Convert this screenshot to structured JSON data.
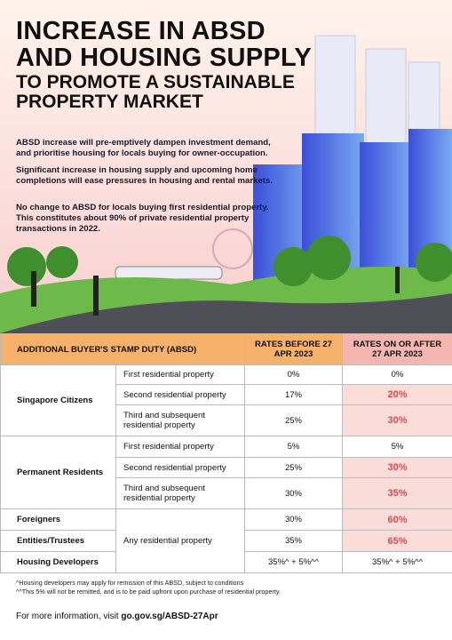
{
  "header": {
    "title_lines": [
      "INCREASE IN ABSD",
      "AND HOUSING SUPPLY"
    ],
    "subtitle_lines": [
      "TO PROMOTE A SUSTAINABLE",
      "PROPERTY MARKET"
    ]
  },
  "paragraphs": [
    "ABSD increase will pre-emptively dampen investment demand, and prioritise housing for locals buying for owner-occupation.",
    "Significant increase in housing supply and upcoming home completions will ease pressures in housing and rental markets.",
    "No change to ABSD for locals buying first residential property. This constitutes about 90% of private residential property transactions in 2022."
  ],
  "table": {
    "header": [
      "ADDITIONAL BUYER'S STAMP DUTY (ABSD)",
      "RATES BEFORE 27 APR 2023",
      "RATES ON OR AFTER 27 APR 2023"
    ],
    "groups": [
      {
        "label": "Singapore Citizens",
        "rows": [
          {
            "type": "First residential property",
            "before": "0%",
            "after": "0%"
          },
          {
            "type": "Second residential property",
            "before": "17%",
            "after": "20%"
          },
          {
            "type": "Third and subsequent residential property",
            "before": "25%",
            "after": "30%"
          }
        ]
      },
      {
        "label": "Permanent Residents",
        "rows": [
          {
            "type": "First residential property",
            "before": "5%",
            "after": "5%"
          },
          {
            "type": "Second residential property",
            "before": "25%",
            "after": "30%"
          },
          {
            "type": "Third and subsequent residential property",
            "before": "30%",
            "after": "35%"
          }
        ]
      }
    ],
    "others": {
      "type": "Any residential property",
      "rows": [
        {
          "label": "Foreigners",
          "before": "30%",
          "after": "60%"
        },
        {
          "label": "Entities/Trustees",
          "before": "35%",
          "after": "65%"
        },
        {
          "label": "Housing Developers",
          "before": "35%^ + 5%^^",
          "after": "35%^ + 5%^^"
        }
      ]
    }
  },
  "footnotes": [
    "^Housing developers may apply for remission of this ABSD, subject to conditions",
    "^^This 5% will not be remitted, and is to be paid upfront upon purchase of residential property."
  ],
  "footer": {
    "text": "For more information, visit",
    "link": "go.gov.sg/ABSD-27Apr"
  }
}
